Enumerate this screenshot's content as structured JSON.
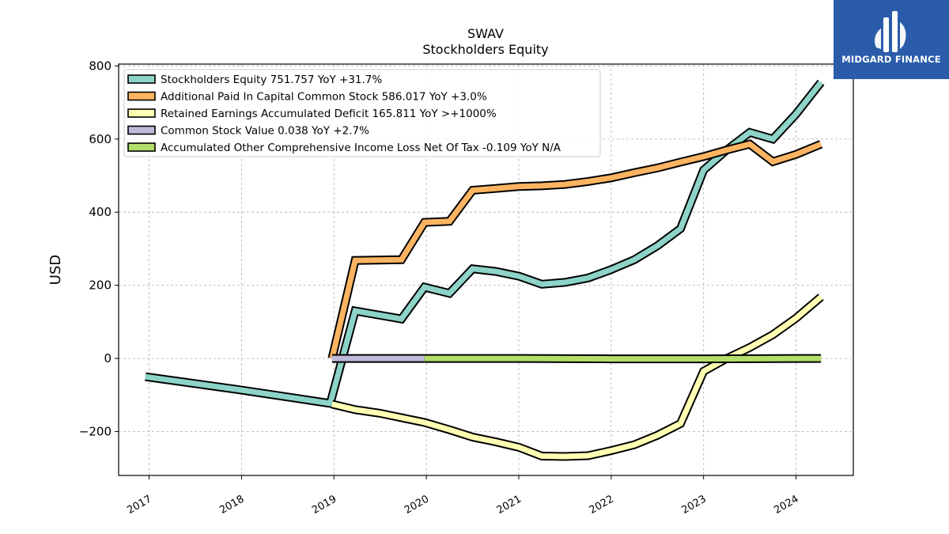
{
  "chart_data": {
    "type": "line",
    "title": "SWAV",
    "subtitle": "Stockholders  Equity",
    "xlabel": "",
    "ylabel": "USD",
    "xlim": [
      2016.67,
      2024.62
    ],
    "ylim": [
      -320,
      805
    ],
    "yticks": [
      -200,
      0,
      200,
      400,
      600,
      800
    ],
    "ytick_labels": [
      "−200",
      "0",
      "200",
      "400",
      "600",
      "800"
    ],
    "xticks": [
      2017,
      2018,
      2019,
      2020,
      2021,
      2022,
      2023,
      2024
    ],
    "xtick_labels": [
      "2017",
      "2018",
      "2019",
      "2020",
      "2021",
      "2022",
      "2023",
      "2024"
    ],
    "grid": true,
    "legend_position": "top-left",
    "series": [
      {
        "name": "Stockholders Equity  751.757 YoY +31.7%",
        "color": "#8dd3c7",
        "x": [
          2016.96,
          2017.96,
          2018.96,
          2019.23,
          2019.73,
          2019.98,
          2020.25,
          2020.5,
          2020.75,
          2021.0,
          2021.25,
          2021.5,
          2021.75,
          2022.0,
          2022.25,
          2022.5,
          2022.75,
          2023.0,
          2023.25,
          2023.5,
          2023.75,
          2024.0,
          2024.27
        ],
        "y": [
          -50,
          -85,
          -123,
          130,
          108,
          195,
          178,
          245,
          238,
          225,
          203,
          208,
          220,
          243,
          270,
          308,
          355,
          515,
          570,
          618,
          600,
          668,
          755
        ]
      },
      {
        "name": "Additional Paid In Capital Common Stock  586.017 YoY +3.0%",
        "color": "#fdb462",
        "x": [
          2018.98,
          2019.23,
          2019.73,
          2019.98,
          2020.25,
          2020.5,
          2020.75,
          2021.0,
          2021.25,
          2021.5,
          2021.75,
          2022.0,
          2022.25,
          2022.5,
          2022.75,
          2023.0,
          2023.25,
          2023.5,
          2023.75,
          2024.0,
          2024.27
        ],
        "y": [
          0,
          268,
          270,
          372,
          375,
          460,
          465,
          470,
          472,
          476,
          484,
          494,
          508,
          521,
          537,
          552,
          570,
          586,
          538,
          558,
          586
        ]
      },
      {
        "name": "Retained Earnings Accumulated Deficit  165.811 YoY >+1000%",
        "color": "#ffffb3",
        "x": [
          2018.98,
          2019.23,
          2019.5,
          2019.73,
          2019.98,
          2020.25,
          2020.5,
          2020.75,
          2021.0,
          2021.25,
          2021.5,
          2021.75,
          2022.0,
          2022.25,
          2022.5,
          2022.75,
          2023.0,
          2023.25,
          2023.5,
          2023.75,
          2024.0,
          2024.27
        ],
        "y": [
          -125,
          -140,
          -150,
          -162,
          -175,
          -195,
          -215,
          -228,
          -243,
          -267,
          -268,
          -266,
          -252,
          -236,
          -210,
          -178,
          -35,
          0,
          30,
          65,
          110,
          168
        ]
      },
      {
        "name": "Common Stock Value  0.038 YoY +2.7%",
        "color": "#bebada",
        "x": [
          2018.98,
          2019.98
        ],
        "y": [
          0,
          0
        ]
      },
      {
        "name": "Accumulated Other Comprehensive Income Loss Net Of Tax  -0.109 YoY N/A",
        "color": "#b3de69",
        "x": [
          2019.98,
          2021.0,
          2022.0,
          2023.0,
          2024.27
        ],
        "y": [
          0,
          0,
          -1,
          -1,
          0
        ]
      }
    ]
  },
  "logo": {
    "text": "MIDGARD FINANCE",
    "background": "#2a5caa"
  }
}
